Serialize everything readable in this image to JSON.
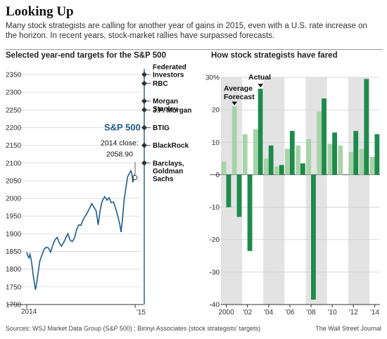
{
  "header": {
    "title": "Looking Up",
    "subtitle": "Many stock strategists are calling for another year of gains in 2015, even with a U.S. rate increase on the horizon. In recent years, stock-market rallies have surpassed forecasts."
  },
  "footer": {
    "source": "Sources: WSJ Market Data Group (S&P 500) ; Birinyi Associates (stock strategists' targets)",
    "credit": "The Wall Street Journal"
  },
  "colors": {
    "line": "#1f5c8c",
    "forecast": "#a8d3a8",
    "actual": "#1e8a4c",
    "band": "#e3e3e3"
  },
  "chart_data": [
    {
      "type": "line",
      "title": "Selected year-end targets for the S&P 500",
      "ylim": [
        1700,
        2350
      ],
      "yticks": [
        1700,
        1750,
        1800,
        1850,
        1900,
        1950,
        2000,
        2050,
        2100,
        2150,
        2200,
        2250,
        2300,
        2350
      ],
      "xtick_labels": [
        "2014",
        "'15"
      ],
      "series": [
        {
          "name": "S&P 500",
          "x": [
            0,
            0.01,
            0.02,
            0.03,
            0.04,
            0.05,
            0.06,
            0.07,
            0.08,
            0.09,
            0.1,
            0.11,
            0.12,
            0.14,
            0.16,
            0.18,
            0.2,
            0.22,
            0.24,
            0.26,
            0.28,
            0.3,
            0.32,
            0.34,
            0.36,
            0.38,
            0.4,
            0.42,
            0.44,
            0.46,
            0.48,
            0.5,
            0.52,
            0.54,
            0.56,
            0.58,
            0.6,
            0.62,
            0.64,
            0.65,
            0.66,
            0.67,
            0.68,
            0.69,
            0.7,
            0.72,
            0.74,
            0.76,
            0.78,
            0.8,
            0.82,
            0.84,
            0.86,
            0.87,
            0.88,
            0.89,
            0.9,
            0.91,
            0.92,
            0.93,
            0.94,
            0.95,
            0.96,
            0.97,
            0.98,
            0.99,
            1.0
          ],
          "values": [
            1848,
            1838,
            1832,
            1842,
            1828,
            1808,
            1782,
            1762,
            1742,
            1758,
            1778,
            1800,
            1822,
            1840,
            1856,
            1862,
            1860,
            1848,
            1868,
            1882,
            1890,
            1875,
            1865,
            1875,
            1888,
            1900,
            1882,
            1878,
            1888,
            1911,
            1925,
            1924,
            1940,
            1950,
            1960,
            1972,
            1985,
            1975,
            1965,
            1945,
            1925,
            1950,
            1970,
            1985,
            1995,
            2005,
            1995,
            2002,
            1988,
            1990,
            1972,
            1950,
            1925,
            1905,
            1930,
            1965,
            2000,
            2018,
            2040,
            2060,
            2067,
            2072,
            2078,
            2070,
            2045,
            2065,
            2058.9
          ]
        }
      ],
      "annotations": {
        "series_label": "S&P 500",
        "close_label": "2014 close:",
        "close_value": "2058.90"
      },
      "targets": [
        {
          "name": "Federated Investors",
          "lines": [
            "Federated",
            "Investors"
          ],
          "value": 2350
        },
        {
          "name": "RBC",
          "lines": [
            "RBC"
          ],
          "value": 2325
        },
        {
          "name": "Morgan Stanley",
          "lines": [
            "Morgan",
            "Stanley"
          ],
          "value": 2275
        },
        {
          "name": "J.P. Morgan",
          "lines": [
            "J.P. Morgan"
          ],
          "value": 2250
        },
        {
          "name": "BTIG",
          "lines": [
            "BTIG"
          ],
          "value": 2200
        },
        {
          "name": "BlackRock",
          "lines": [
            "BlackRock"
          ],
          "value": 2150
        },
        {
          "name": "Barclays, Goldman Sachs",
          "lines": [
            "Barclays,",
            "Goldman",
            "Sachs"
          ],
          "value": 2100
        }
      ]
    },
    {
      "type": "bar",
      "title": "How stock strategists have fared",
      "ylim": [
        -40,
        30
      ],
      "yticks": [
        -40,
        -30,
        -20,
        -10,
        0,
        10,
        20,
        30
      ],
      "ytick_labels": [
        "-40",
        "-30",
        "-20",
        "-10",
        "0",
        "10",
        "20",
        "30%"
      ],
      "categories": [
        2000,
        2001,
        2002,
        2003,
        2004,
        2005,
        2006,
        2007,
        2008,
        2009,
        2010,
        2011,
        2012,
        2013,
        2014
      ],
      "xtick_labels": [
        "2000",
        "'02",
        "'04",
        "'06",
        "'08",
        "'10",
        "'12",
        "'14"
      ],
      "shaded_years": [
        2000,
        2004,
        2008,
        2012
      ],
      "series": [
        {
          "name": "Average Forecast",
          "values": [
            4,
            21,
            12.5,
            14,
            5,
            2.5,
            8,
            9,
            11,
            19.5,
            9.5,
            9,
            7,
            8,
            5.5
          ]
        },
        {
          "name": "Actual",
          "values": [
            -10,
            -13,
            -23.5,
            26.5,
            9,
            3,
            13.5,
            3.5,
            -38.5,
            23.5,
            13,
            0,
            13.5,
            29.5,
            12.5
          ]
        }
      ]
    }
  ]
}
